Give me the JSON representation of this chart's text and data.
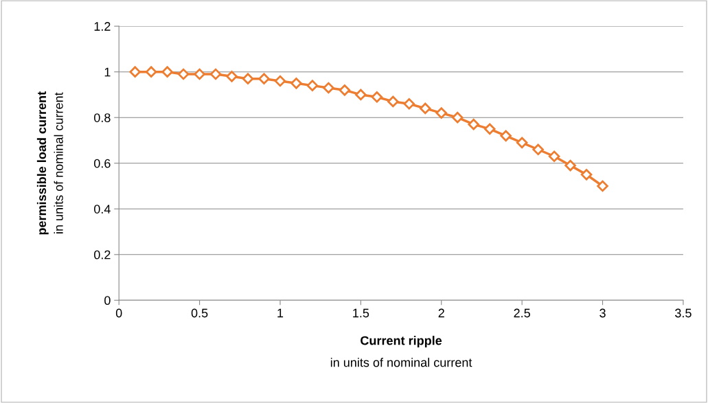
{
  "chart_data": {
    "type": "line",
    "xlabel": "Current ripple\nin units of nominal current",
    "ylabel": "permissible load current\nin units of nominal current",
    "x": [
      0.1,
      0.2,
      0.3,
      0.4,
      0.5,
      0.6,
      0.7,
      0.8,
      0.9,
      1.0,
      1.1,
      1.2,
      1.3,
      1.4,
      1.5,
      1.6,
      1.7,
      1.8,
      1.9,
      2.0,
      2.1,
      2.2,
      2.3,
      2.4,
      2.5,
      2.6,
      2.7,
      2.8,
      2.9,
      3.0
    ],
    "series": [
      {
        "color": "#ed7d31",
        "values": [
          1.0,
          1.0,
          1.0,
          0.99,
          0.99,
          0.99,
          0.98,
          0.97,
          0.97,
          0.96,
          0.95,
          0.94,
          0.93,
          0.92,
          0.9,
          0.89,
          0.87,
          0.86,
          0.84,
          0.82,
          0.8,
          0.77,
          0.75,
          0.72,
          0.69,
          0.66,
          0.63,
          0.59,
          0.55,
          0.5
        ]
      }
    ],
    "xlim": [
      0,
      3.5
    ],
    "xticks": [
      0,
      0.5,
      1,
      1.5,
      2,
      2.5,
      3,
      3.5
    ],
    "ylim": [
      0,
      1.2
    ],
    "yticks": [
      0,
      0.2,
      0.4,
      0.6,
      0.8,
      1,
      1.2
    ],
    "grid": "y",
    "marker": "diamond",
    "line_style": "solid",
    "legend": false
  }
}
